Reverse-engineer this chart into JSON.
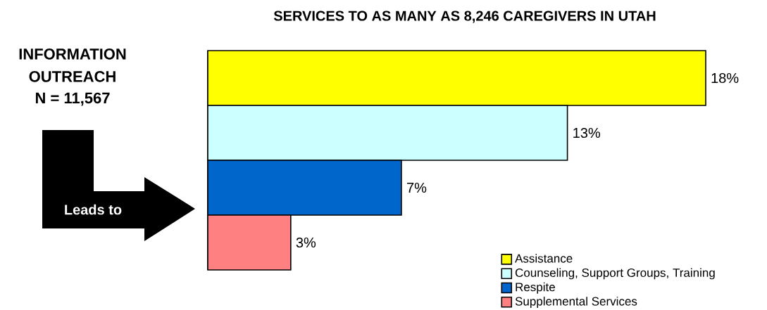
{
  "chart_data": {
    "type": "bar",
    "orientation": "horizontal",
    "stacked": true,
    "title": "SERVICES TO AS MANY AS 8,246 CAREGIVERS IN UTAH",
    "categories": [
      null,
      null,
      null,
      null
    ],
    "series": [
      {
        "name": "Assistance",
        "color": "#ffff00",
        "values": [
          18,
          null,
          null,
          null
        ],
        "value_labels": [
          "18%",
          null,
          null,
          null
        ]
      },
      {
        "name": "Counseling, Support Groups, Training",
        "color": "#ccffff",
        "values": [
          null,
          13,
          null,
          null
        ],
        "value_labels": [
          null,
          "13%",
          null,
          null
        ]
      },
      {
        "name": "Respite",
        "color": "#0066cc",
        "values": [
          null,
          null,
          7,
          null
        ],
        "value_labels": [
          null,
          null,
          "7%",
          null
        ]
      },
      {
        "name": "Supplemental Services",
        "color": "#ff8080",
        "values": [
          null,
          null,
          null,
          3
        ],
        "value_labels": [
          null,
          null,
          null,
          "3%"
        ]
      }
    ],
    "legend": "bottom right",
    "annotations": [
      "INFORMATION OUTREACH",
      "N = 11,567",
      "Leads to"
    ]
  }
}
